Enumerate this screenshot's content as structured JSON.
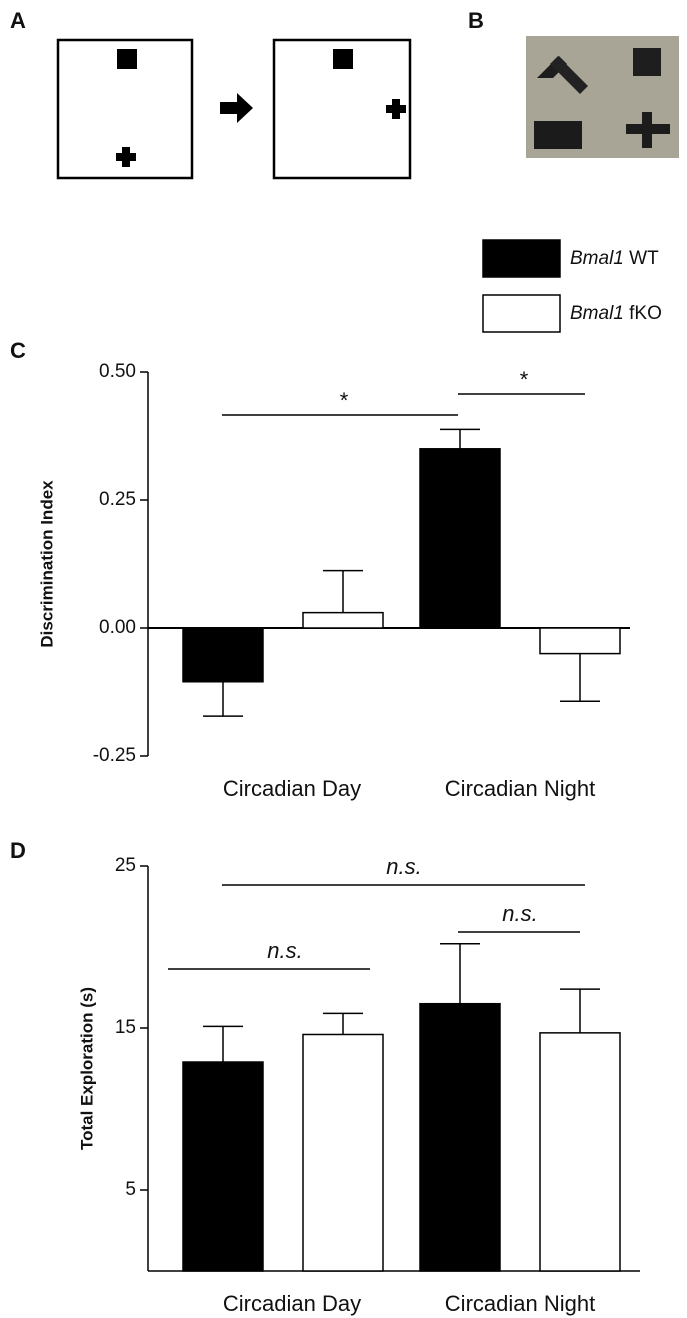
{
  "panels": [
    "A",
    "B"
  ],
  "chart_data": [
    {
      "type": "bar",
      "label": "C",
      "y_label": "Discrimination Index",
      "categories": [
        "Circadian Day",
        "Circadian Night"
      ],
      "series": [
        {
          "name": "Bmal1 WT",
          "color": "#000000",
          "values": [
            -0.105,
            0.35
          ],
          "errors": [
            0.067,
            0.038
          ]
        },
        {
          "name": "Bmal1 fKO",
          "color": "#ffffff",
          "values": [
            0.03,
            -0.05
          ],
          "errors": [
            0.082,
            0.093
          ]
        }
      ],
      "ylim": [
        -0.25,
        0.5
      ],
      "yticks": [
        -0.25,
        {
          "value": 0,
          "label": "0.00"
        },
        0.25,
        {
          "value": 0.5,
          "label": "0.50"
        }
      ],
      "annotations": [
        "*",
        "*"
      ]
    },
    {
      "type": "bar",
      "label": "D",
      "y_label": "Total Exploration (s)",
      "categories": [
        "Circadian Day",
        "Circadian Night"
      ],
      "series": [
        {
          "name": "Bmal1 WT",
          "color": "#000000",
          "values": [
            12.9,
            16.5
          ],
          "errors": [
            2.2,
            3.7
          ]
        },
        {
          "name": "Bmal1 fKO",
          "color": "#ffffff",
          "values": [
            14.6,
            14.7
          ],
          "errors": [
            1.3,
            2.7
          ]
        }
      ],
      "ylim": [
        0,
        25
      ],
      "yticks": [
        5,
        15,
        25
      ],
      "annotations": [
        "n.s.",
        "n.s.",
        "n.s."
      ]
    }
  ]
}
